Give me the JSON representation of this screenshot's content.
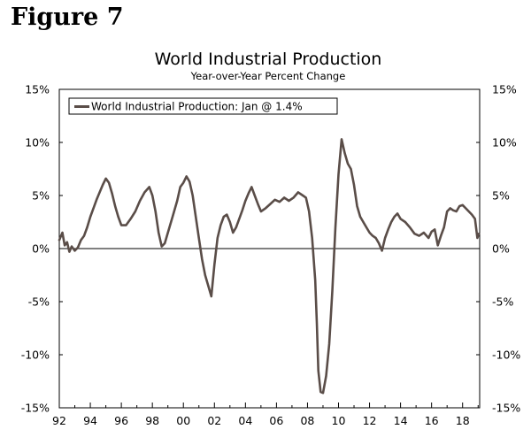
{
  "figure_label": "Figure 7",
  "chart_data": {
    "type": "line",
    "title": "World Industrial Production",
    "subtitle": "Year-over-Year Percent Change",
    "xlabel": "",
    "ylabel": "",
    "xlim": [
      1992.0,
      2019.1
    ],
    "ylim": [
      -15,
      15
    ],
    "yticks": [
      15,
      10,
      5,
      0,
      -5,
      -10,
      -15
    ],
    "ytick_labels": [
      "15%",
      "10%",
      "5%",
      "0%",
      "-5%",
      "-10%",
      "-15%"
    ],
    "xticks": [
      1992,
      1994,
      1996,
      1998,
      2000,
      2002,
      2004,
      2006,
      2008,
      2010,
      2012,
      2014,
      2016,
      2018
    ],
    "xtick_labels": [
      "92",
      "94",
      "96",
      "98",
      "00",
      "02",
      "04",
      "06",
      "08",
      "10",
      "12",
      "14",
      "16",
      "18"
    ],
    "grid": false,
    "zero_line": true,
    "legend_position": "top-left",
    "line_color": "#5a4d48",
    "series": [
      {
        "name": "World Industrial Production: Jan @ 1.4%",
        "x": [
          1992.0,
          1992.2,
          1992.35,
          1992.5,
          1992.65,
          1992.8,
          1993.0,
          1993.2,
          1993.4,
          1993.6,
          1993.8,
          1994.0,
          1994.2,
          1994.4,
          1994.6,
          1994.8,
          1995.0,
          1995.2,
          1995.4,
          1995.6,
          1995.8,
          1996.0,
          1996.3,
          1996.6,
          1996.9,
          1997.2,
          1997.5,
          1997.8,
          1998.0,
          1998.2,
          1998.4,
          1998.6,
          1998.8,
          1999.0,
          1999.3,
          1999.6,
          1999.8,
          2000.0,
          2000.2,
          2000.4,
          2000.6,
          2000.8,
          2001.0,
          2001.2,
          2001.4,
          2001.6,
          2001.8,
          2002.0,
          2002.2,
          2002.4,
          2002.6,
          2002.8,
          2003.0,
          2003.2,
          2003.4,
          2003.6,
          2003.8,
          2004.0,
          2004.2,
          2004.4,
          2004.6,
          2004.8,
          2005.0,
          2005.3,
          2005.6,
          2005.9,
          2006.2,
          2006.5,
          2006.8,
          2007.1,
          2007.4,
          2007.7,
          2007.9,
          2008.1,
          2008.3,
          2008.5,
          2008.6,
          2008.7,
          2008.85,
          2009.0,
          2009.2,
          2009.4,
          2009.6,
          2009.8,
          2010.0,
          2010.2,
          2010.4,
          2010.6,
          2010.8,
          2011.0,
          2011.2,
          2011.4,
          2011.6,
          2011.8,
          2012.0,
          2012.2,
          2012.4,
          2012.6,
          2012.8,
          2013.0,
          2013.2,
          2013.4,
          2013.6,
          2013.8,
          2014.0,
          2014.3,
          2014.6,
          2014.9,
          2015.2,
          2015.5,
          2015.8,
          2016.0,
          2016.2,
          2016.4,
          2016.6,
          2016.8,
          2017.0,
          2017.2,
          2017.4,
          2017.6,
          2017.8,
          2018.0,
          2018.2,
          2018.4,
          2018.6,
          2018.8,
          2018.95,
          2019.05
        ],
        "y": [
          0.8,
          1.5,
          0.3,
          0.6,
          -0.3,
          0.2,
          -0.2,
          0.1,
          0.8,
          1.2,
          2.0,
          3.0,
          3.8,
          4.6,
          5.3,
          6.0,
          6.6,
          6.2,
          5.2,
          4.0,
          3.0,
          2.2,
          2.2,
          2.8,
          3.5,
          4.5,
          5.3,
          5.8,
          5.0,
          3.5,
          1.5,
          0.2,
          0.5,
          1.5,
          3.0,
          4.5,
          5.8,
          6.2,
          6.8,
          6.3,
          5.0,
          3.0,
          1.0,
          -1.0,
          -2.5,
          -3.5,
          -4.5,
          -1.5,
          1.0,
          2.2,
          3.0,
          3.2,
          2.5,
          1.5,
          2.0,
          2.8,
          3.6,
          4.5,
          5.2,
          5.8,
          5.0,
          4.2,
          3.5,
          3.8,
          4.2,
          4.6,
          4.4,
          4.8,
          4.5,
          4.8,
          5.3,
          5.0,
          4.8,
          3.5,
          1.0,
          -3.0,
          -7.0,
          -11.5,
          -13.5,
          -13.6,
          -12.0,
          -9.0,
          -4.0,
          2.0,
          7.0,
          10.3,
          9.0,
          8.0,
          7.5,
          6.0,
          4.0,
          3.0,
          2.5,
          2.0,
          1.5,
          1.2,
          1.0,
          0.5,
          -0.2,
          1.0,
          1.8,
          2.5,
          3.0,
          3.3,
          2.8,
          2.5,
          2.0,
          1.4,
          1.2,
          1.5,
          1.0,
          1.6,
          1.8,
          0.3,
          1.2,
          2.0,
          3.5,
          3.8,
          3.6,
          3.5,
          4.0,
          4.1,
          3.8,
          3.5,
          3.2,
          2.8,
          1.0,
          1.4
        ]
      }
    ]
  }
}
